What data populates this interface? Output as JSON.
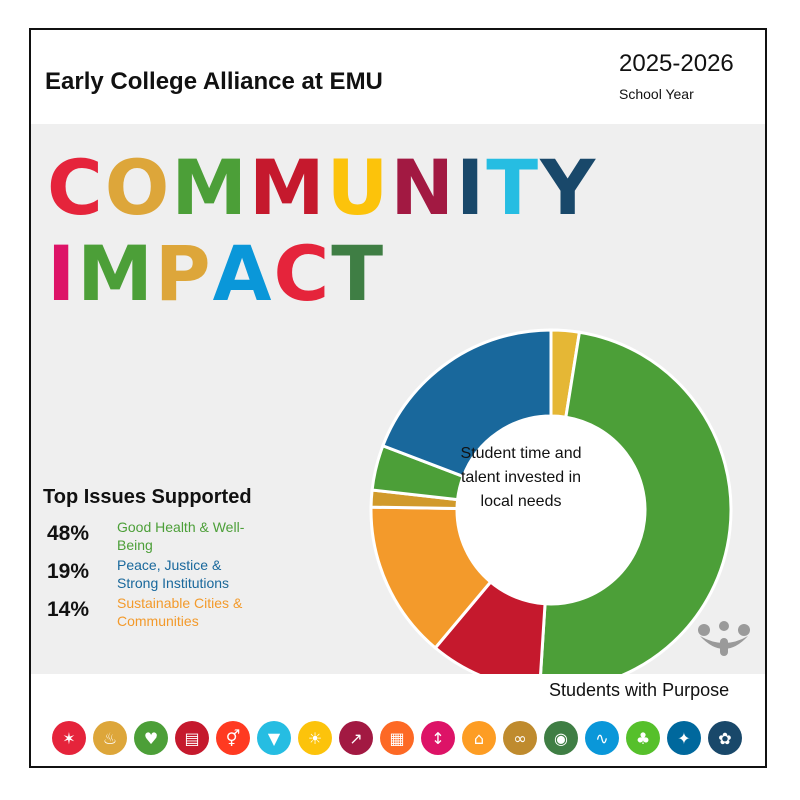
{
  "header": {
    "org_name": "Early College Alliance at EMU",
    "year": "2025-2026",
    "year_label": "School Year"
  },
  "headline": {
    "line1": [
      "C",
      "O",
      "M",
      "M",
      "U",
      "N",
      "I",
      "T",
      "Y"
    ],
    "line2": [
      "I",
      "M",
      "P",
      "A",
      "C",
      "T"
    ],
    "colors1": [
      "#E5243B",
      "#DDA63A",
      "#4C9F38",
      "#C5192D",
      "#FCC30B",
      "#A21942",
      "#19486A",
      "#26BDE2",
      "#19486A"
    ],
    "colors2": [
      "#DD1367",
      "#4C9F38",
      "#DDA63A",
      "#0A97D9",
      "#E5243B",
      "#3F7E44"
    ]
  },
  "chart_data": {
    "type": "donut",
    "center_text": [
      "Student time and",
      "talent invested in",
      "local needs"
    ],
    "values": [
      2.5,
      48,
      10,
      14,
      1.5,
      4,
      19
    ],
    "colors": [
      "#E5B735",
      "#4C9F38",
      "#C5192D",
      "#F39A2B",
      "#D19A2B",
      "#4C9F38",
      "#19689C"
    ]
  },
  "issues": {
    "title": "Top Issues Supported",
    "items": [
      {
        "pct": "48%",
        "lines": [
          "Good Health & Well-",
          "Being"
        ],
        "color": "#4C9F38"
      },
      {
        "pct": "19%",
        "lines": [
          "Peace, Justice &",
          "Strong Institutions"
        ],
        "color": "#19689C"
      },
      {
        "pct": "14%",
        "lines": [
          "Sustainable Cities &",
          "Communities"
        ],
        "color": "#F39A2B"
      }
    ]
  },
  "footer": {
    "tagline": "Students with Purpose",
    "sdg_icons": [
      {
        "name": "no-poverty",
        "color": "#E5243B",
        "glyph": "✶"
      },
      {
        "name": "zero-hunger",
        "color": "#DDA63A",
        "glyph": "♨"
      },
      {
        "name": "good-health",
        "color": "#4C9F38",
        "glyph": "♥"
      },
      {
        "name": "quality-education",
        "color": "#C5192D",
        "glyph": "▤"
      },
      {
        "name": "gender-equality",
        "color": "#FF3A21",
        "glyph": "⚥"
      },
      {
        "name": "clean-water",
        "color": "#26BDE2",
        "glyph": "▼"
      },
      {
        "name": "clean-energy",
        "color": "#FCC30B",
        "glyph": "☀"
      },
      {
        "name": "decent-work",
        "color": "#A21942",
        "glyph": "↗"
      },
      {
        "name": "industry-innovation",
        "color": "#FD6925",
        "glyph": "▦"
      },
      {
        "name": "reduced-inequalities",
        "color": "#DD1367",
        "glyph": "↕"
      },
      {
        "name": "sustainable-cities",
        "color": "#FD9D24",
        "glyph": "⌂"
      },
      {
        "name": "responsible-consumption",
        "color": "#BF8B2E",
        "glyph": "∞"
      },
      {
        "name": "climate-action",
        "color": "#3F7E44",
        "glyph": "◉"
      },
      {
        "name": "life-below-water",
        "color": "#0A97D9",
        "glyph": "∿"
      },
      {
        "name": "life-on-land",
        "color": "#56C02B",
        "glyph": "♣"
      },
      {
        "name": "peace-justice",
        "color": "#00689D",
        "glyph": "✦"
      },
      {
        "name": "partnerships",
        "color": "#19486A",
        "glyph": "✿"
      }
    ]
  }
}
